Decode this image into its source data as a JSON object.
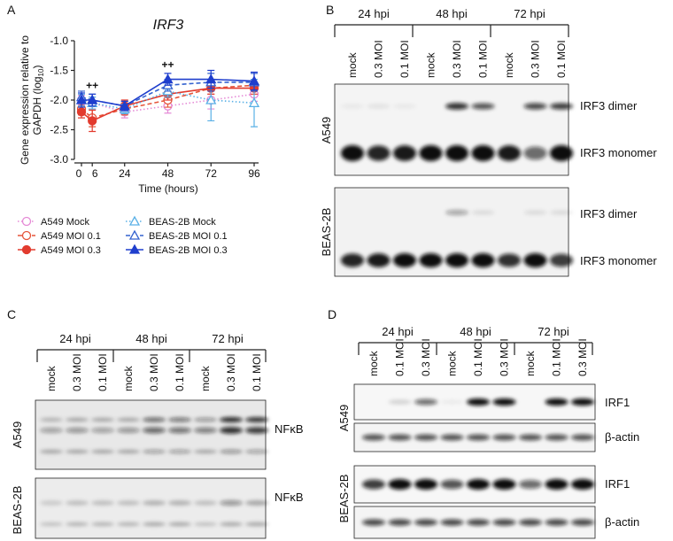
{
  "chart_data": {
    "type": "line",
    "panel_label": "A",
    "title": "IRF3",
    "ylabel": {
      "line1": "Gene expression relative to",
      "line2": "GAPDH (log",
      "sub": "10",
      "end": ")"
    },
    "xlabel": "Time  (hours)",
    "x": [
      0,
      6,
      24,
      48,
      72,
      96
    ],
    "xlim": [
      0,
      96
    ],
    "xticks": [
      0,
      6,
      24,
      48,
      72,
      96
    ],
    "ylim": [
      -3,
      -1
    ],
    "yticks": [
      {
        "value": -1,
        "label": "-1.0"
      },
      -1.5,
      {
        "value": -2,
        "label": "-2.0"
      },
      -2.5,
      {
        "value": -3,
        "label": "-3.0"
      }
    ],
    "annotations": [
      {
        "text": "++",
        "x": 6,
        "y": -1.75
      },
      {
        "text": "++",
        "x": 48,
        "y": -1.4
      }
    ],
    "series": [
      {
        "name": "A549 Mock",
        "color": "#e58ad6",
        "marker": "circle",
        "filled": false,
        "dash": "dotted",
        "values": [
          -2.0,
          -2.05,
          -2.2,
          -2.1,
          -2.0,
          -1.9
        ],
        "errors": [
          0.08,
          0.1,
          0.1,
          0.12,
          0.15,
          0.12
        ]
      },
      {
        "name": "A549 MOI 0.1",
        "color": "#e5553a",
        "marker": "circle",
        "filled": false,
        "dash": "dashed",
        "values": [
          -2.15,
          -2.3,
          -2.15,
          -2.0,
          -1.8,
          -1.75
        ],
        "errors": [
          0.1,
          0.15,
          0.1,
          0.12,
          0.1,
          0.1
        ]
      },
      {
        "name": "A549 MOI 0.3",
        "color": "#e23b2e",
        "marker": "circle",
        "filled": true,
        "dash": "solid",
        "values": [
          -2.2,
          -2.35,
          -2.1,
          -1.9,
          -1.8,
          -1.8
        ],
        "errors": [
          0.1,
          0.18,
          0.1,
          0.1,
          0.1,
          0.1
        ]
      },
      {
        "name": "BEAS-2B Mock",
        "color": "#5ab0e6",
        "marker": "triangle",
        "filled": false,
        "dash": "dotted",
        "values": [
          -2.0,
          -2.05,
          -2.15,
          -1.85,
          -2.0,
          -2.05
        ],
        "errors": [
          0.1,
          0.1,
          0.08,
          0.1,
          0.35,
          0.4
        ]
      },
      {
        "name": "BEAS-2B MOI 0.1",
        "color": "#3462cf",
        "marker": "triangle",
        "filled": false,
        "dash": "dashed",
        "values": [
          -1.95,
          -2.0,
          -2.1,
          -1.75,
          -1.7,
          -1.7
        ],
        "errors": [
          0.1,
          0.1,
          0.08,
          0.1,
          0.15,
          0.15
        ]
      },
      {
        "name": "BEAS-2B MOI 0.3",
        "color": "#1f3ecd",
        "marker": "triangle",
        "filled": true,
        "dash": "solid",
        "values": [
          -2.0,
          -2.0,
          -2.1,
          -1.65,
          -1.65,
          -1.68
        ],
        "errors": [
          0.12,
          0.1,
          0.08,
          0.1,
          0.15,
          0.15
        ]
      }
    ]
  },
  "panel_b": {
    "letter": "B",
    "groups": [
      "24 hpi",
      "48 hpi",
      "72 hpi"
    ],
    "lanes": [
      [
        "mock",
        "0.3 MOI",
        "0.1 MOI"
      ],
      [
        "mock",
        "0.3 MOI",
        "0.1 MOI"
      ],
      [
        "mock",
        "0.3 MOI",
        "0.1 MOI"
      ]
    ],
    "rows": [
      {
        "cell": "A549",
        "bands": [
          "IRF3 dimer",
          "IRF3 monomer"
        ]
      },
      {
        "cell": "BEAS-2B",
        "bands": [
          "IRF3 dimer",
          "IRF3 monomer"
        ]
      }
    ]
  },
  "panel_c": {
    "letter": "C",
    "groups": [
      "24 hpi",
      "48 hpi",
      "72 hpi"
    ],
    "lanes": [
      [
        "mock",
        "0.3 MOI",
        "0.1 MOI"
      ],
      [
        "mock",
        "0.3 MOI",
        "0.1 MOI"
      ],
      [
        "mock",
        "0.3 MOI",
        "0.1 MOI"
      ]
    ],
    "rows": [
      {
        "cell": "A549",
        "bands": [
          "NFκB"
        ]
      },
      {
        "cell": "BEAS-2B",
        "bands": [
          "NFκB"
        ]
      }
    ]
  },
  "panel_d": {
    "letter": "D",
    "groups": [
      "24 hpi",
      "48 hpi",
      "72 hpi"
    ],
    "lanes": [
      [
        "mock",
        "0.1 MOI",
        "0.3 MOI"
      ],
      [
        "mock",
        "0.1 MOI",
        "0.3 MOI"
      ],
      [
        "mock",
        "0.1 MOI",
        "0.3 MOI"
      ]
    ],
    "rows": [
      {
        "cell": "A549",
        "bands": [
          "IRF1",
          "β-actin"
        ]
      },
      {
        "cell": "BEAS-2B",
        "bands": [
          "IRF1",
          "β-actin"
        ]
      }
    ]
  }
}
